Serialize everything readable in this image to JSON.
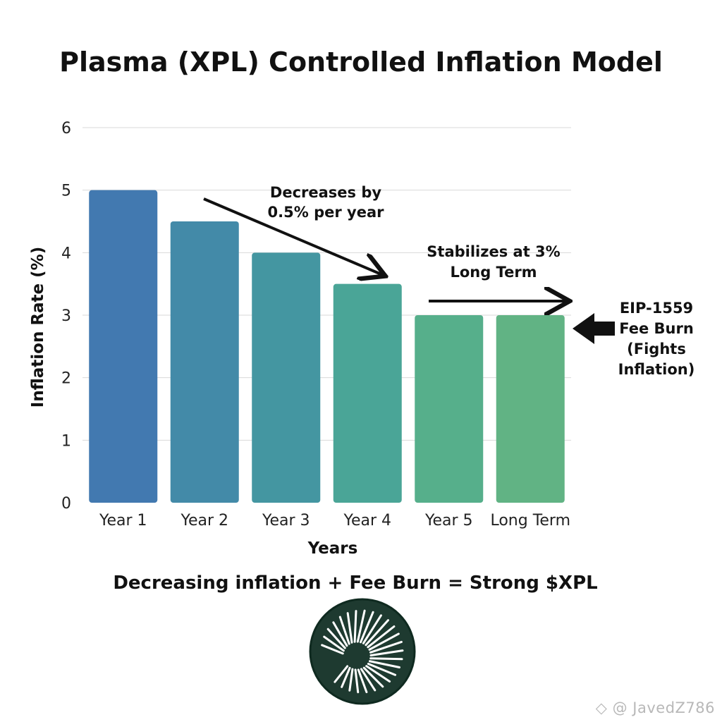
{
  "chart_data": {
    "type": "bar",
    "title": "Plasma (XPL) Controlled Inflation Model",
    "xlabel": "Years",
    "ylabel": "Inflation Rate (%)",
    "categories": [
      "Year 1",
      "Year 2",
      "Year 3",
      "Year 4",
      "Year 5",
      "Long Term"
    ],
    "values": [
      5,
      4.5,
      4,
      3.5,
      3,
      3
    ],
    "ylim": [
      0,
      6
    ],
    "yticks": [
      0,
      1,
      2,
      3,
      4,
      5,
      6
    ],
    "grid": true,
    "bar_colors": [
      "#4279b0",
      "#438aa8",
      "#4496a1",
      "#4aa597",
      "#56af8b",
      "#61b384"
    ],
    "annotations": {
      "decrease": [
        "Decreases by",
        "0.5% per year"
      ],
      "stabilize": [
        "Stabilizes at 3%",
        "Long Term"
      ],
      "burn": [
        "EIP-1559",
        "Fee Burn",
        "(Fights",
        "Inflation)"
      ]
    },
    "caption": "Decreasing inflation + Fee Burn = Strong $XPL"
  },
  "watermark": "@ JavedZ786",
  "colors": {
    "text": "#111111",
    "grid": "#d9d9d9",
    "logo_bg": "#1e3a30",
    "logo_ring": "#0f2a20"
  },
  "icons": {
    "logo": "plasma-logo-icon",
    "watermark": "binance-square-icon"
  }
}
